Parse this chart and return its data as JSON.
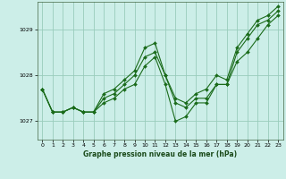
{
  "title": "Graphe pression niveau de la mer (hPa)",
  "background_color": "#cceee8",
  "grid_color": "#99ccbb",
  "line_color": "#1a6b1a",
  "marker_color": "#1a6b1a",
  "xlim": [
    -0.5,
    23.5
  ],
  "ylim": [
    1026.6,
    1029.6
  ],
  "yticks": [
    1027,
    1028,
    1029
  ],
  "xticks": [
    0,
    1,
    2,
    3,
    4,
    5,
    6,
    7,
    8,
    9,
    10,
    11,
    12,
    13,
    14,
    15,
    16,
    17,
    18,
    19,
    20,
    21,
    22,
    23
  ],
  "series": [
    [
      1027.7,
      1027.2,
      1027.2,
      1027.3,
      1027.2,
      1027.2,
      1027.4,
      1027.5,
      1027.7,
      1027.8,
      1028.2,
      1028.4,
      1027.8,
      1027.0,
      1027.1,
      1027.4,
      1027.4,
      1027.8,
      1027.8,
      1028.3,
      1028.5,
      1028.8,
      1029.1,
      1029.3
    ],
    [
      1027.7,
      1027.2,
      1027.2,
      1027.3,
      1027.2,
      1027.2,
      1027.5,
      1027.6,
      1027.8,
      1028.0,
      1028.4,
      1028.5,
      1028.0,
      1027.4,
      1027.3,
      1027.5,
      1027.5,
      1027.8,
      1027.8,
      1028.5,
      1028.8,
      1029.1,
      1029.2,
      1029.4
    ],
    [
      1027.7,
      1027.2,
      1027.2,
      1027.3,
      1027.2,
      1027.2,
      1027.6,
      1027.7,
      1027.9,
      1028.1,
      1028.6,
      1028.7,
      1028.0,
      1027.5,
      1027.4,
      1027.6,
      1027.7,
      1028.0,
      1027.9,
      1028.6,
      1028.9,
      1029.2,
      1029.3,
      1029.5
    ]
  ],
  "title_fontsize": 5.5,
  "tick_fontsize": 4.5,
  "linewidth": 0.8,
  "markersize": 2.0
}
